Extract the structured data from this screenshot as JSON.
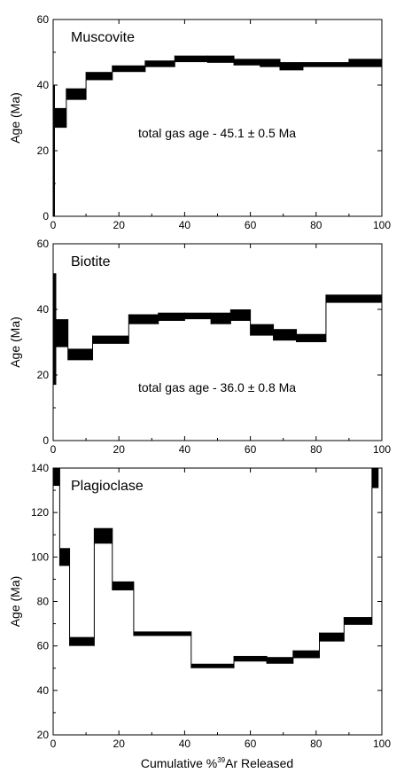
{
  "figure": {
    "xlabel_prefix": "Cumulative %",
    "xlabel_superscript": "39",
    "xlabel_suffix": "Ar Released"
  },
  "chart_data": [
    {
      "type": "step",
      "title": "Muscovite",
      "annotation": "total gas age - 45.1 ± 0.5 Ma",
      "ylabel": "Age (Ma)",
      "xlabel": "",
      "xlim": [
        0,
        100
      ],
      "ylim": [
        0,
        60
      ],
      "xticks": [
        0,
        20,
        40,
        60,
        80,
        100
      ],
      "yticks": [
        0,
        20,
        40,
        60
      ],
      "color": "#000000",
      "steps": [
        {
          "x0": 0.0,
          "x1": 0.4,
          "ylo": 0,
          "yhi": 40
        },
        {
          "x0": 0.4,
          "x1": 4.0,
          "ylo": 27,
          "yhi": 33
        },
        {
          "x0": 4.0,
          "x1": 10.0,
          "ylo": 35.5,
          "yhi": 39
        },
        {
          "x0": 10.0,
          "x1": 18.0,
          "ylo": 41.5,
          "yhi": 44
        },
        {
          "x0": 18.0,
          "x1": 28.0,
          "ylo": 44,
          "yhi": 46
        },
        {
          "x0": 28.0,
          "x1": 37.0,
          "ylo": 45.5,
          "yhi": 47.5
        },
        {
          "x0": 37.0,
          "x1": 47.0,
          "ylo": 47,
          "yhi": 49
        },
        {
          "x0": 47.0,
          "x1": 55.0,
          "ylo": 46.8,
          "yhi": 49
        },
        {
          "x0": 55.0,
          "x1": 63.0,
          "ylo": 46,
          "yhi": 48
        },
        {
          "x0": 63.0,
          "x1": 69.0,
          "ylo": 45.5,
          "yhi": 48
        },
        {
          "x0": 69.0,
          "x1": 76.0,
          "ylo": 44.5,
          "yhi": 47
        },
        {
          "x0": 76.0,
          "x1": 90.0,
          "ylo": 45.5,
          "yhi": 47
        },
        {
          "x0": 90.0,
          "x1": 100.0,
          "ylo": 45.5,
          "yhi": 48
        }
      ]
    },
    {
      "type": "step",
      "title": "Biotite",
      "annotation": "total gas age - 36.0 ± 0.8 Ma",
      "ylabel": "Age (Ma)",
      "xlabel": "",
      "xlim": [
        0,
        100
      ],
      "ylim": [
        0,
        60
      ],
      "xticks": [
        0,
        20,
        40,
        60,
        80,
        100
      ],
      "yticks": [
        0,
        20,
        40,
        60
      ],
      "color": "#000000",
      "steps": [
        {
          "x0": 0.0,
          "x1": 0.8,
          "ylo": 17,
          "yhi": 51
        },
        {
          "x0": 0.8,
          "x1": 4.5,
          "ylo": 28.5,
          "yhi": 37
        },
        {
          "x0": 4.5,
          "x1": 12.0,
          "ylo": 24.5,
          "yhi": 28
        },
        {
          "x0": 12.0,
          "x1": 23.0,
          "ylo": 29.5,
          "yhi": 32
        },
        {
          "x0": 23.0,
          "x1": 32.0,
          "ylo": 35.5,
          "yhi": 38.5
        },
        {
          "x0": 32.0,
          "x1": 40.0,
          "ylo": 36.5,
          "yhi": 39
        },
        {
          "x0": 40.0,
          "x1": 48.0,
          "ylo": 37,
          "yhi": 39
        },
        {
          "x0": 48.0,
          "x1": 54.0,
          "ylo": 35.5,
          "yhi": 39
        },
        {
          "x0": 54.0,
          "x1": 60.0,
          "ylo": 36.5,
          "yhi": 40
        },
        {
          "x0": 60.0,
          "x1": 67.0,
          "ylo": 32,
          "yhi": 35.5
        },
        {
          "x0": 67.0,
          "x1": 74.0,
          "ylo": 30.5,
          "yhi": 34
        },
        {
          "x0": 74.0,
          "x1": 83.0,
          "ylo": 30,
          "yhi": 32.5
        },
        {
          "x0": 83.0,
          "x1": 100.0,
          "ylo": 42,
          "yhi": 44.5
        }
      ]
    },
    {
      "type": "step",
      "title": "Plagioclase",
      "annotation": "",
      "ylabel": "Age (Ma)",
      "xlabel": "",
      "xlim": [
        0,
        100
      ],
      "ylim": [
        20,
        140
      ],
      "xticks": [
        0,
        20,
        40,
        60,
        80,
        100
      ],
      "yticks": [
        20,
        40,
        60,
        80,
        100,
        120,
        140
      ],
      "color": "#000000",
      "steps": [
        {
          "x0": 0.0,
          "x1": 2.0,
          "ylo": 132,
          "yhi": 140
        },
        {
          "x0": 2.0,
          "x1": 5.0,
          "ylo": 96,
          "yhi": 104
        },
        {
          "x0": 5.0,
          "x1": 12.5,
          "ylo": 60,
          "yhi": 64
        },
        {
          "x0": 12.5,
          "x1": 18.0,
          "ylo": 106,
          "yhi": 113
        },
        {
          "x0": 18.0,
          "x1": 24.5,
          "ylo": 85,
          "yhi": 89
        },
        {
          "x0": 24.5,
          "x1": 42.0,
          "ylo": 64.5,
          "yhi": 66.5
        },
        {
          "x0": 42.0,
          "x1": 55.0,
          "ylo": 50,
          "yhi": 52
        },
        {
          "x0": 55.0,
          "x1": 65.0,
          "ylo": 53,
          "yhi": 55.5
        },
        {
          "x0": 65.0,
          "x1": 73.0,
          "ylo": 52,
          "yhi": 55
        },
        {
          "x0": 73.0,
          "x1": 81.0,
          "ylo": 54.5,
          "yhi": 58
        },
        {
          "x0": 81.0,
          "x1": 88.5,
          "ylo": 62,
          "yhi": 66
        },
        {
          "x0": 88.5,
          "x1": 97.0,
          "ylo": 69.5,
          "yhi": 73
        },
        {
          "x0": 97.0,
          "x1": 99.0,
          "ylo": 131,
          "yhi": 140
        }
      ]
    }
  ]
}
